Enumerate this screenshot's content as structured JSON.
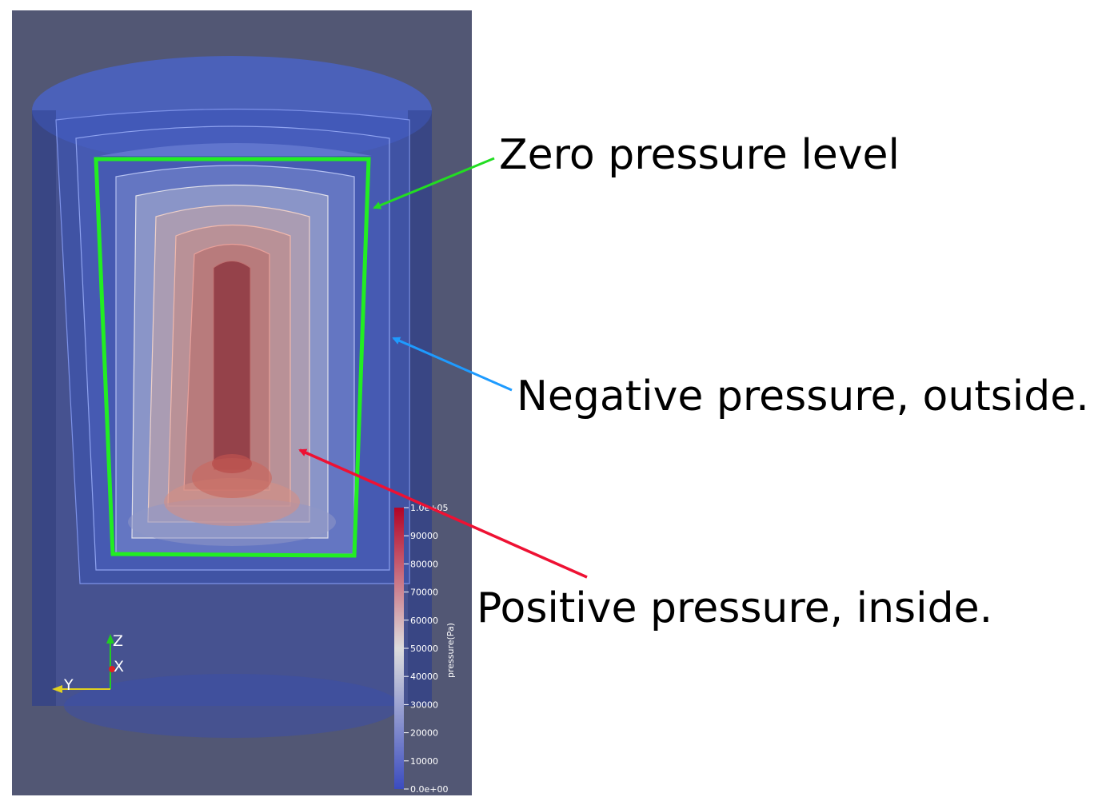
{
  "annotations": {
    "zero": "Zero pressure level",
    "negative": "Negative pressure, outside.",
    "positive": "Positive pressure, inside."
  },
  "colorbar": {
    "title": "pressure(Pa)",
    "ticks": [
      "0.0e+00",
      "10000",
      "20000",
      "30000",
      "40000",
      "50000",
      "60000",
      "70000",
      "80000",
      "90000",
      "1.0e+05"
    ],
    "range": [
      0,
      100000
    ],
    "colors": {
      "low": "#3b4cc0",
      "mid": "#dddddd",
      "high": "#b40426"
    }
  },
  "orientation_axes": {
    "z": "Z",
    "x": "X",
    "y": "Y"
  },
  "arrow_colors": {
    "zero": "#22dd22",
    "negative": "#1e9bff",
    "positive": "#ee1133"
  }
}
